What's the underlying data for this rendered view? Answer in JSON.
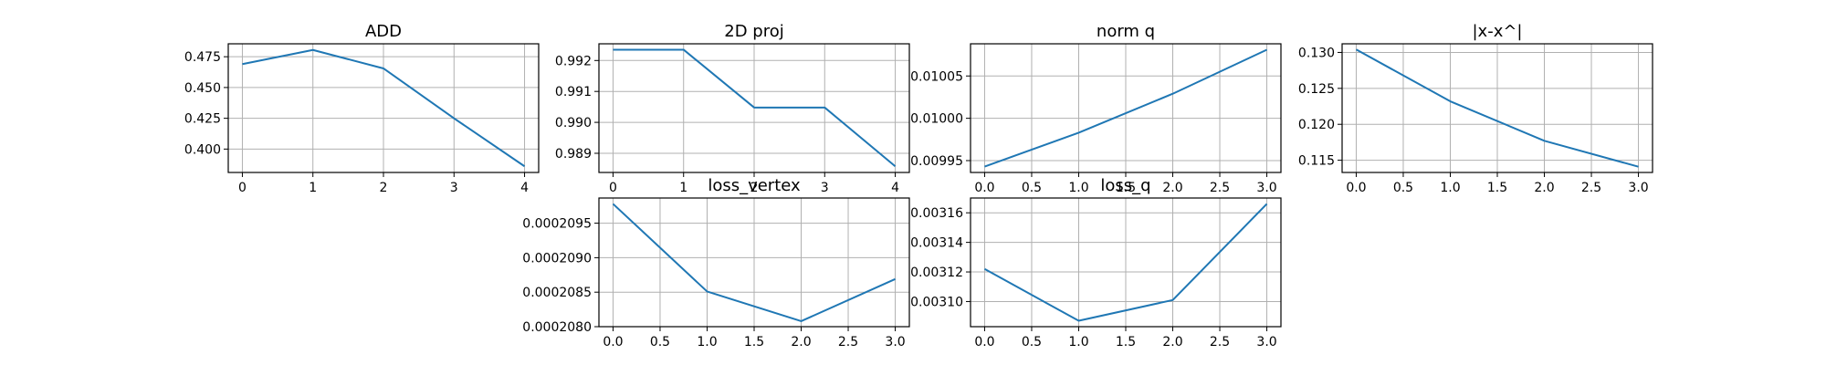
{
  "chart_data": [
    {
      "type": "line",
      "title": "ADD",
      "x": [
        0,
        1,
        2,
        3,
        4
      ],
      "y": [
        0.469,
        0.4805,
        0.4655,
        0.425,
        0.386
      ],
      "xlim": [
        -0.2,
        4.2
      ],
      "ylim": [
        0.381,
        0.4855
      ],
      "xticks": [
        0,
        1,
        2,
        3,
        4
      ],
      "xtick_labels": [
        "0",
        "1",
        "2",
        "3",
        "4"
      ],
      "yticks": [
        0.4,
        0.425,
        0.45,
        0.475
      ],
      "ytick_labels": [
        "0.400",
        "0.425",
        "0.450",
        "0.475"
      ],
      "grid": true,
      "color": "#1f77b4"
    },
    {
      "type": "line",
      "title": "2D proj",
      "x": [
        0,
        1,
        2,
        3,
        4
      ],
      "y": [
        0.99235,
        0.99235,
        0.99048,
        0.99048,
        0.98858
      ],
      "xlim": [
        -0.2,
        4.2
      ],
      "ylim": [
        0.98838,
        0.99254
      ],
      "xticks": [
        0,
        1,
        2,
        3,
        4
      ],
      "xtick_labels": [
        "0",
        "1",
        "2",
        "3",
        "4"
      ],
      "yticks": [
        0.989,
        0.99,
        0.991,
        0.992
      ],
      "ytick_labels": [
        "0.989",
        "0.990",
        "0.991",
        "0.992"
      ],
      "grid": true,
      "color": "#1f77b4"
    },
    {
      "type": "line",
      "title": "norm q",
      "x": [
        0,
        1,
        2,
        3
      ],
      "y": [
        0.009943,
        0.009983,
        0.010029,
        0.010081
      ],
      "xlim": [
        -0.15,
        3.15
      ],
      "ylim": [
        0.009936,
        0.010088
      ],
      "xticks": [
        0,
        0.5,
        1,
        1.5,
        2,
        2.5,
        3
      ],
      "xtick_labels": [
        "0.0",
        "0.5",
        "1.0",
        "1.5",
        "2.0",
        "2.5",
        "3.0"
      ],
      "yticks": [
        0.00995,
        0.01,
        0.01005
      ],
      "ytick_labels": [
        "0.00995",
        "0.01000",
        "0.01005"
      ],
      "grid": true,
      "color": "#1f77b4"
    },
    {
      "type": "line",
      "title": "|x-x^|",
      "x": [
        0,
        1,
        2,
        3
      ],
      "y": [
        0.1304,
        0.1232,
        0.1177,
        0.1141
      ],
      "xlim": [
        -0.15,
        3.15
      ],
      "ylim": [
        0.1133,
        0.1312
      ],
      "xticks": [
        0,
        0.5,
        1,
        1.5,
        2,
        2.5,
        3
      ],
      "xtick_labels": [
        "0.0",
        "0.5",
        "1.0",
        "1.5",
        "2.0",
        "2.5",
        "3.0"
      ],
      "yticks": [
        0.115,
        0.12,
        0.125,
        0.13
      ],
      "ytick_labels": [
        "0.115",
        "0.120",
        "0.125",
        "0.130"
      ],
      "grid": true,
      "color": "#1f77b4"
    },
    {
      "type": "line",
      "title": "loss_vertex",
      "x": [
        0,
        1,
        2,
        3
      ],
      "y": [
        0.00020978,
        0.00020851,
        0.00020808,
        0.00020869
      ],
      "xlim": [
        -0.15,
        3.15
      ],
      "ylim": [
        0.000208,
        0.000209865
      ],
      "xticks": [
        0,
        0.5,
        1,
        1.5,
        2,
        2.5,
        3
      ],
      "xtick_labels": [
        "0.0",
        "0.5",
        "1.0",
        "1.5",
        "2.0",
        "2.5",
        "3.0"
      ],
      "yticks": [
        0.000208,
        0.0002085,
        0.000209,
        0.0002095
      ],
      "ytick_labels": [
        "0.0002080",
        "0.0002085",
        "0.0002090",
        "0.0002095"
      ],
      "grid": true,
      "color": "#1f77b4"
    },
    {
      "type": "line",
      "title": "loss_q",
      "x": [
        0,
        1,
        2,
        3
      ],
      "y": [
        0.003122,
        0.003087,
        0.003101,
        0.003166
      ],
      "xlim": [
        -0.15,
        3.15
      ],
      "ylim": [
        0.003083,
        0.00317
      ],
      "xticks": [
        0,
        0.5,
        1,
        1.5,
        2,
        2.5,
        3
      ],
      "xtick_labels": [
        "0.0",
        "0.5",
        "1.0",
        "1.5",
        "2.0",
        "2.5",
        "3.0"
      ],
      "yticks": [
        0.0031,
        0.00312,
        0.00314,
        0.00316
      ],
      "ytick_labels": [
        "0.00310",
        "0.00312",
        "0.00314",
        "0.00316"
      ],
      "grid": true,
      "color": "#1f77b4"
    }
  ]
}
